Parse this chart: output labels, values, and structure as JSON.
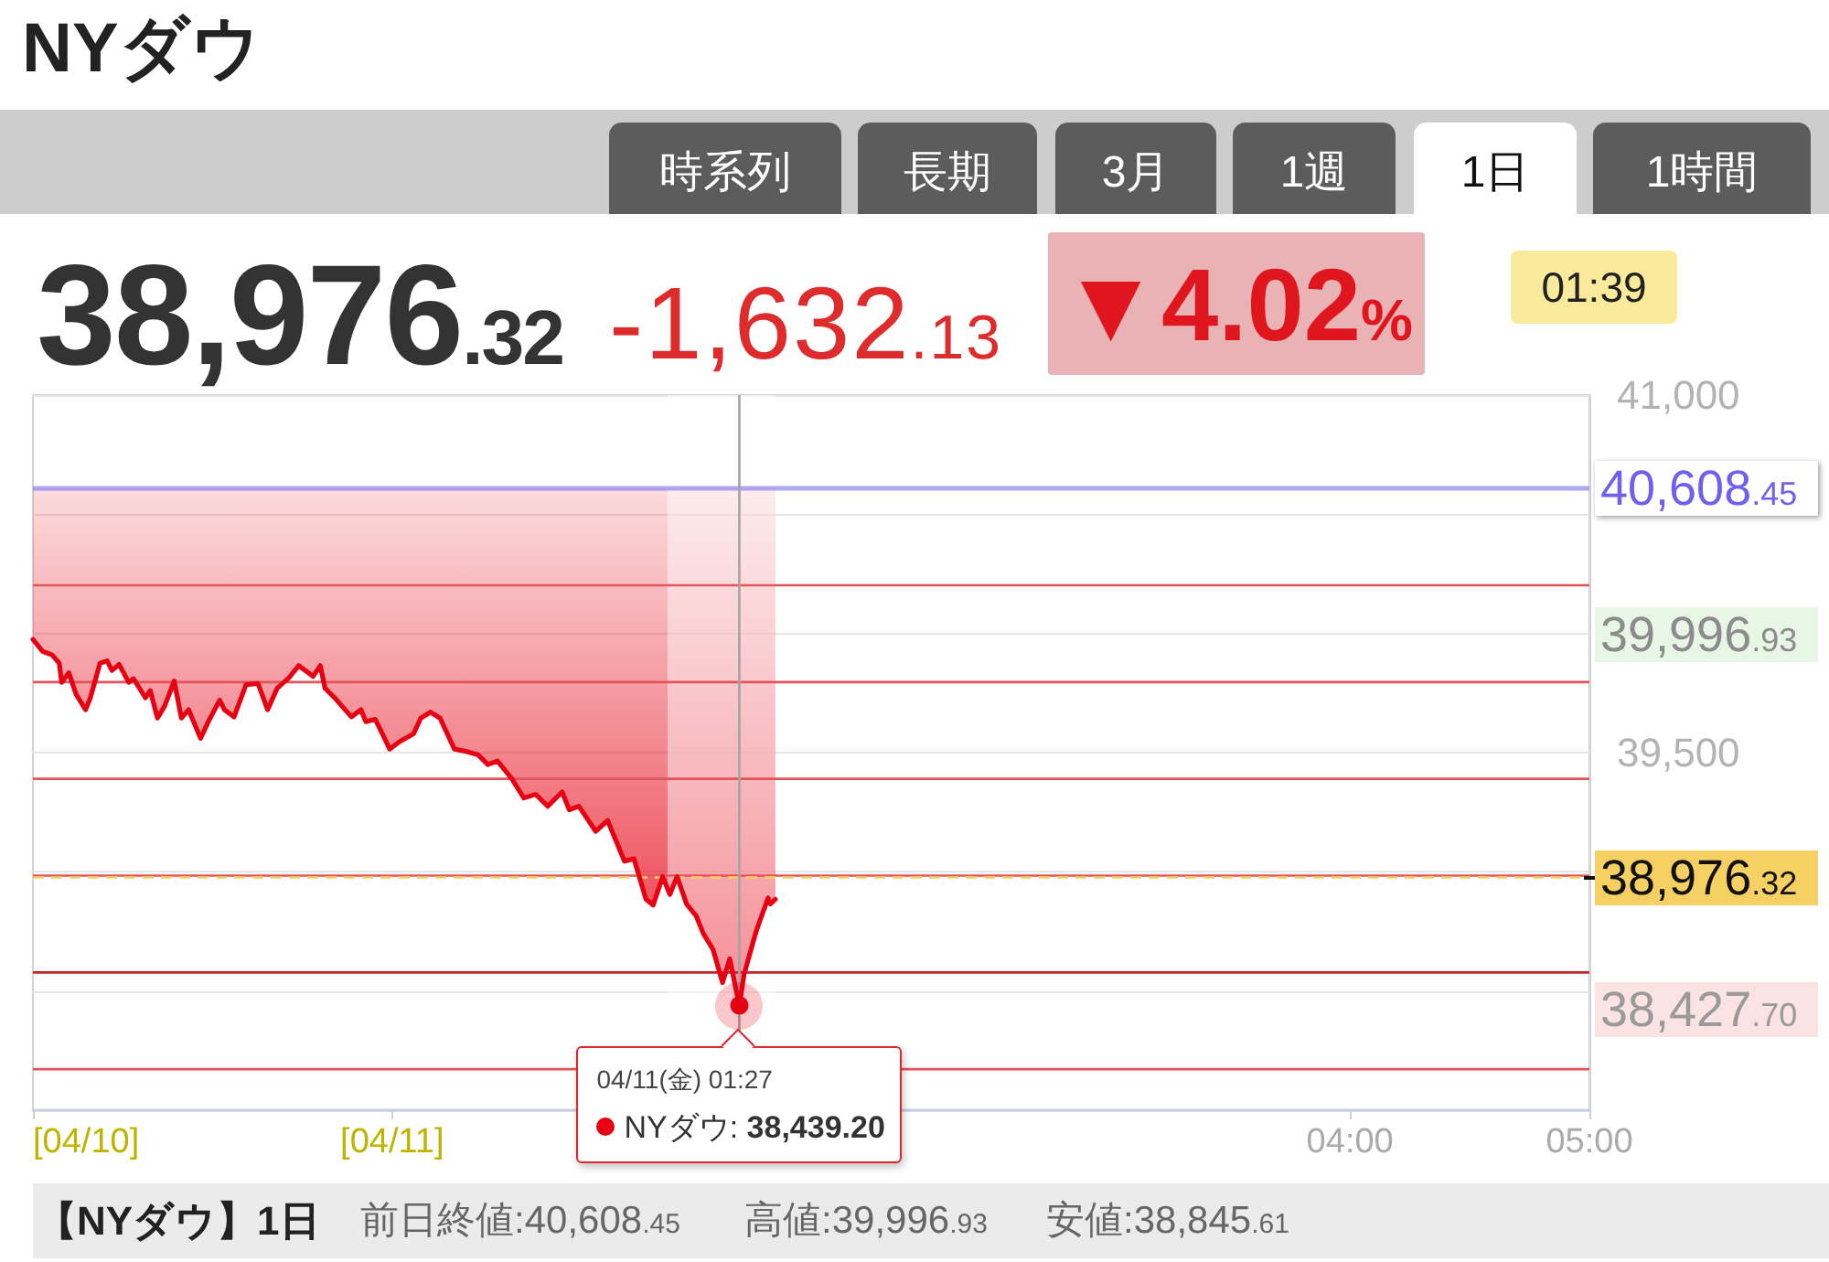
{
  "chart_data": {
    "type": "line",
    "title": "NYダウ",
    "x": [
      -1.5,
      -1.46,
      -1.42,
      -1.39,
      -1.38,
      -1.35,
      -1.32,
      -1.28,
      -1.26,
      -1.22,
      -1.19,
      -1.17,
      -1.14,
      -1.1,
      -1.08,
      -1.03,
      -1.01,
      -0.98,
      -0.95,
      -0.91,
      -0.88,
      -0.85,
      -0.8,
      -0.76,
      -0.72,
      -0.7,
      -0.66,
      -0.61,
      -0.56,
      -0.52,
      -0.48,
      -0.43,
      -0.39,
      -0.35,
      -0.33,
      -0.3,
      -0.28,
      -0.24,
      -0.17,
      -0.13,
      -0.11,
      -0.07,
      -0.01,
      0.03,
      0.09,
      0.12,
      0.16,
      0.2,
      0.26,
      0.31,
      0.36,
      0.4,
      0.44,
      0.5,
      0.55,
      0.6,
      0.65,
      0.71,
      0.74,
      0.78,
      0.85,
      0.9,
      0.97,
      1.01,
      1.06,
      1.09,
      1.13,
      1.16,
      1.19,
      1.23,
      1.27,
      1.3,
      1.34,
      1.38,
      1.41,
      1.45,
      1.47,
      1.52,
      1.57,
      1.58,
      1.6
    ],
    "series": [
      {
        "color": "#e60012",
        "values": [
          39975,
          39925,
          39910,
          39875,
          39795,
          39835,
          39745,
          39680,
          39730,
          39875,
          39885,
          39845,
          39870,
          39795,
          39810,
          39730,
          39760,
          39645,
          39695,
          39800,
          39645,
          39680,
          39560,
          39645,
          39720,
          39680,
          39650,
          39785,
          39790,
          39680,
          39770,
          39815,
          39865,
          39835,
          39820,
          39865,
          39770,
          39730,
          39650,
          39680,
          39630,
          39640,
          39515,
          39545,
          39580,
          39645,
          39670,
          39645,
          39515,
          39505,
          39490,
          39450,
          39465,
          39390,
          39310,
          39325,
          39275,
          39335,
          39260,
          39275,
          39170,
          39215,
          39045,
          39055,
          38885,
          38860,
          38980,
          38905,
          38980,
          38865,
          38815,
          38740,
          38675,
          38535,
          38635,
          38439.2,
          38570,
          38750,
          38890,
          38865,
          38885
        ],
        "lower": [
          39975,
          39925,
          39910,
          39875,
          39795,
          39835,
          39745,
          39680,
          39730,
          39875,
          39885,
          39845,
          39870,
          39795,
          39810,
          39730,
          39760,
          39645,
          39695,
          39800,
          39645,
          39680,
          39560,
          39645,
          39720,
          39680,
          39650,
          39785,
          39790,
          39680,
          39770,
          39815,
          39865,
          39835,
          39820,
          39865,
          39770,
          39730,
          39650,
          39680,
          39630,
          39640,
          39515,
          39545,
          39580,
          39645,
          39670,
          39645,
          39515,
          39505,
          39490,
          39450,
          39465,
          39390,
          39310,
          39325,
          39275,
          39335,
          39260,
          39275,
          39170,
          39215,
          39045,
          39055,
          38885,
          38860,
          38980,
          38905,
          38980,
          38865,
          38815,
          38740,
          38675,
          38535,
          38635,
          38439.2,
          38570,
          38750,
          38890,
          38865,
          38885
        ],
        "upper": [
          40608.45,
          40608.45,
          40608.45,
          40608.45,
          40608.45,
          40608.45,
          40608.45,
          40608.45,
          40608.45,
          40608.45,
          40608.45,
          40608.45,
          40608.45,
          40608.45,
          40608.45,
          40608.45,
          40608.45,
          40608.45,
          40608.45,
          40608.45,
          40608.45,
          40608.45,
          40608.45,
          40608.45,
          40608.45,
          40608.45,
          40608.45,
          40608.45,
          40608.45,
          40608.45,
          40608.45,
          40608.45,
          40608.45,
          40608.45,
          40608.45,
          40608.45,
          40608.45,
          40608.45,
          40608.45,
          40608.45,
          40608.45,
          40608.45,
          40608.45,
          40608.45,
          40608.45,
          40608.45,
          40608.45,
          40608.45,
          40608.45,
          40608.45,
          40608.45,
          40608.45,
          40608.45,
          40608.45,
          40608.45,
          40608.45,
          40608.45,
          40608.45,
          40608.45,
          40608.45,
          40608.45,
          40608.45,
          40608.45,
          40608.45,
          40608.45,
          40608.45,
          40608.45,
          40608.45,
          40608.45,
          40608.45,
          40608.45,
          40608.45,
          40608.45,
          40608.45,
          40608.45,
          40608.45,
          40608.45,
          40608.45,
          40608.45,
          40608.45,
          40608.45
        ]
      }
    ],
    "xlim": [
      -1.5,
      5
    ],
    "xticks": [
      {
        "value": -1.5,
        "label": "[04/10]"
      },
      {
        "value": 0,
        "label": "[04/11]"
      },
      {
        "value": 4,
        "label": "04:00"
      },
      {
        "value": 5,
        "label": "05:00"
      }
    ],
    "ylim": [
      38000,
      41000
    ],
    "yticks": [
      {
        "value": 38000,
        "label": null
      },
      {
        "value": 38500,
        "label": null
      },
      {
        "value": 39000,
        "label": null
      },
      {
        "value": 39500,
        "label": "39,500"
      },
      {
        "value": 40000,
        "label": null
      },
      {
        "value": 40500,
        "label": null
      },
      {
        "value": 41000,
        "label": "41,000"
      }
    ],
    "grid": "y",
    "ref_lines": [
      {
        "axis": "y",
        "value": 40608.45,
        "label": "40,608.45",
        "color": "#6f61ee"
      },
      {
        "axis": "y",
        "value": 40202,
        "color": "#e2545a"
      },
      {
        "axis": "y",
        "value": 39796,
        "color": "#e2545a"
      },
      {
        "axis": "y",
        "value": 39390,
        "color": "#e2545a"
      },
      {
        "axis": "y",
        "value": 38984,
        "color": "#e2545a"
      },
      {
        "axis": "y",
        "value": 38578,
        "color": "#c4242b"
      },
      {
        "axis": "y",
        "value": 38172,
        "color": "#e2545a"
      },
      {
        "axis": "y",
        "value": 38976.32,
        "label": "38,976.32",
        "color": "#f6d063",
        "line_style": "dashed"
      },
      {
        "axis": "x",
        "value": 1.45,
        "color": "#a3a3a3"
      }
    ],
    "bands": [
      {
        "axis": "x",
        "from": 1.15,
        "to": 1.6,
        "color": "#ffffff"
      }
    ],
    "annotations": [
      "時系列",
      "長期",
      "3月",
      "1週",
      "1日",
      "1時間",
      "38,976.32",
      "-1,632.13",
      "▼4.02%",
      "01:39",
      "39,996.93",
      "38,427.70",
      {
        "text": "04/11(金) 01:27\nNYダウ: 38,439.20",
        "x": 1.45,
        "y": 38439.2
      },
      "【NYダウ】1日",
      "前日終値:40,608.45",
      "高値:39,996.93",
      "安値:38,845.61"
    ]
  }
}
